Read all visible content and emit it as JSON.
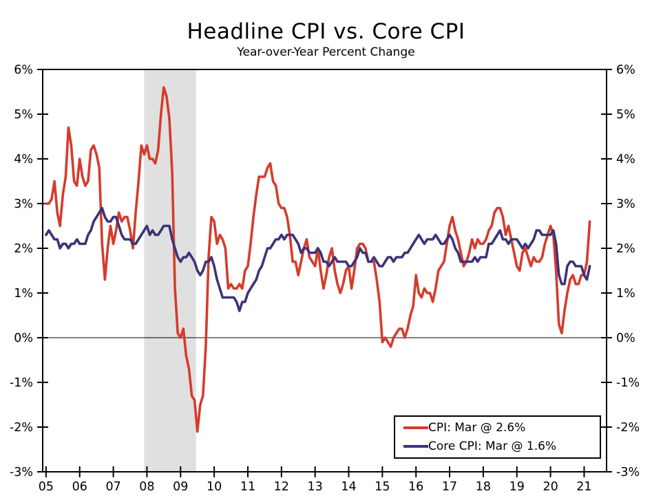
{
  "title": "Headline CPI vs. Core CPI",
  "subtitle": "Year-over-Year Percent Change",
  "legend": {
    "position": "bottom-right",
    "items": [
      {
        "label": "CPI: Mar @ 2.6%",
        "color": "#D63B2C"
      },
      {
        "label": "Core CPI: Mar @ 1.6%",
        "color": "#3C3379"
      }
    ]
  },
  "chart_data": {
    "type": "line",
    "title": "Headline CPI vs. Core CPI",
    "subtitle": "Year-over-Year Percent Change",
    "x_start": "2005-01",
    "x_end": "2021-03",
    "frequency": "monthly",
    "x_tick_labels": [
      "05",
      "06",
      "07",
      "08",
      "09",
      "10",
      "11",
      "12",
      "13",
      "14",
      "15",
      "16",
      "17",
      "18",
      "19",
      "20",
      "21"
    ],
    "y_tick_labels": [
      "6%",
      "5%",
      "4%",
      "3%",
      "2%",
      "1%",
      "0%",
      "-1%",
      "-2%",
      "-3%"
    ],
    "y_tick_values": [
      6,
      5,
      4,
      3,
      2,
      1,
      0,
      -1,
      -2,
      -3
    ],
    "ylim": [
      -3,
      6
    ],
    "grid": "off",
    "zero_line": true,
    "dual_y_axis": true,
    "recession_band": {
      "from": "2007-12",
      "to": "2009-06",
      "color": "#E0E0E0"
    },
    "series": [
      {
        "name": "CPI",
        "color": "#D63B2C",
        "values": [
          3.0,
          3.0,
          3.1,
          3.5,
          2.8,
          2.5,
          3.2,
          3.6,
          4.7,
          4.3,
          3.5,
          3.4,
          4.0,
          3.6,
          3.4,
          3.5,
          4.2,
          4.3,
          4.1,
          3.8,
          2.1,
          1.3,
          2.0,
          2.5,
          2.1,
          2.4,
          2.8,
          2.6,
          2.7,
          2.7,
          2.4,
          2.0,
          2.8,
          3.5,
          4.3,
          4.1,
          4.3,
          4.0,
          4.0,
          3.9,
          4.2,
          5.0,
          5.6,
          5.4,
          4.9,
          3.7,
          1.1,
          0.1,
          0.0,
          0.2,
          -0.4,
          -0.7,
          -1.3,
          -1.4,
          -2.1,
          -1.5,
          -1.3,
          -0.2,
          1.8,
          2.7,
          2.6,
          2.1,
          2.3,
          2.2,
          2.0,
          1.1,
          1.2,
          1.1,
          1.1,
          1.2,
          1.1,
          1.5,
          1.6,
          2.1,
          2.7,
          3.2,
          3.6,
          3.6,
          3.6,
          3.8,
          3.9,
          3.5,
          3.4,
          3.0,
          2.9,
          2.9,
          2.7,
          2.3,
          1.7,
          1.7,
          1.4,
          1.7,
          2.0,
          2.2,
          1.8,
          1.7,
          1.6,
          2.0,
          1.5,
          1.1,
          1.4,
          1.8,
          2.0,
          1.5,
          1.2,
          1.0,
          1.2,
          1.5,
          1.6,
          1.1,
          1.5,
          2.0,
          2.1,
          2.1,
          2.0,
          1.7,
          1.7,
          1.7,
          1.3,
          0.8,
          -0.1,
          0.0,
          -0.1,
          -0.2,
          0.0,
          0.1,
          0.2,
          0.2,
          0.0,
          0.2,
          0.5,
          0.7,
          1.4,
          1.0,
          0.9,
          1.1,
          1.0,
          1.0,
          0.8,
          1.1,
          1.5,
          1.6,
          1.7,
          2.1,
          2.5,
          2.7,
          2.4,
          2.2,
          1.9,
          1.6,
          1.7,
          1.9,
          2.2,
          2.0,
          2.2,
          2.1,
          2.1,
          2.2,
          2.4,
          2.5,
          2.8,
          2.9,
          2.9,
          2.7,
          2.3,
          2.5,
          2.2,
          1.9,
          1.6,
          1.5,
          1.9,
          2.0,
          1.8,
          1.6,
          1.8,
          1.7,
          1.7,
          1.8,
          2.1,
          2.3,
          2.5,
          2.3,
          1.5,
          0.3,
          0.1,
          0.6,
          1.0,
          1.3,
          1.4,
          1.2,
          1.2,
          1.4,
          1.4,
          1.7,
          2.6
        ]
      },
      {
        "name": "Core CPI",
        "color": "#3C3379",
        "values": [
          2.3,
          2.4,
          2.3,
          2.2,
          2.2,
          2.0,
          2.1,
          2.1,
          2.0,
          2.1,
          2.1,
          2.2,
          2.1,
          2.1,
          2.1,
          2.3,
          2.4,
          2.6,
          2.7,
          2.8,
          2.9,
          2.7,
          2.6,
          2.6,
          2.7,
          2.7,
          2.5,
          2.3,
          2.2,
          2.2,
          2.2,
          2.1,
          2.1,
          2.2,
          2.3,
          2.4,
          2.5,
          2.3,
          2.4,
          2.3,
          2.3,
          2.4,
          2.5,
          2.5,
          2.5,
          2.2,
          2.0,
          1.8,
          1.7,
          1.8,
          1.8,
          1.9,
          1.8,
          1.7,
          1.5,
          1.4,
          1.5,
          1.7,
          1.7,
          1.8,
          1.6,
          1.3,
          1.1,
          0.9,
          0.9,
          0.9,
          0.9,
          0.9,
          0.8,
          0.6,
          0.8,
          0.8,
          1.0,
          1.1,
          1.2,
          1.3,
          1.5,
          1.6,
          1.8,
          2.0,
          2.0,
          2.1,
          2.2,
          2.2,
          2.3,
          2.2,
          2.3,
          2.3,
          2.3,
          2.2,
          2.1,
          1.9,
          2.0,
          2.0,
          1.9,
          1.9,
          1.9,
          2.0,
          1.9,
          1.7,
          1.7,
          1.6,
          1.7,
          1.8,
          1.7,
          1.7,
          1.7,
          1.7,
          1.6,
          1.6,
          1.7,
          1.8,
          2.0,
          1.9,
          1.9,
          1.7,
          1.7,
          1.8,
          1.7,
          1.6,
          1.6,
          1.7,
          1.8,
          1.8,
          1.7,
          1.8,
          1.8,
          1.8,
          1.9,
          1.9,
          2.0,
          2.1,
          2.2,
          2.3,
          2.2,
          2.1,
          2.2,
          2.2,
          2.2,
          2.3,
          2.2,
          2.1,
          2.1,
          2.2,
          2.3,
          2.2,
          2.0,
          1.9,
          1.7,
          1.7,
          1.7,
          1.7,
          1.7,
          1.8,
          1.7,
          1.8,
          1.8,
          1.8,
          2.1,
          2.1,
          2.2,
          2.3,
          2.4,
          2.2,
          2.2,
          2.1,
          2.2,
          2.2,
          2.2,
          2.1,
          2.0,
          2.1,
          2.0,
          2.1,
          2.2,
          2.4,
          2.4,
          2.3,
          2.3,
          2.3,
          2.3,
          2.4,
          2.1,
          1.4,
          1.2,
          1.2,
          1.6,
          1.7,
          1.7,
          1.6,
          1.6,
          1.6,
          1.4,
          1.3,
          1.6
        ]
      }
    ]
  }
}
